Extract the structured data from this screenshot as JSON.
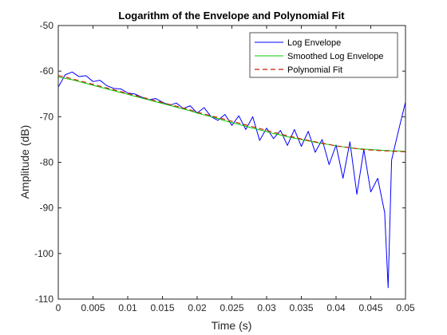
{
  "chart_data": {
    "type": "line",
    "title": "Logarithm of the Envelope and Polynomial Fit",
    "xlabel": "Time (s)",
    "ylabel": "Amplitude (dB)",
    "xlim": [
      0,
      0.05
    ],
    "ylim": [
      -110,
      -50
    ],
    "x_ticks": [
      0,
      0.005,
      0.01,
      0.015,
      0.02,
      0.025,
      0.03,
      0.035,
      0.04,
      0.045,
      0.05
    ],
    "x_tick_labels": [
      "0",
      "0.005",
      "0.01",
      "0.015",
      "0.02",
      "0.025",
      "0.03",
      "0.035",
      "0.04",
      "0.045",
      "0.05"
    ],
    "y_ticks": [
      -110,
      -100,
      -90,
      -80,
      -70,
      -60,
      -50
    ],
    "y_tick_labels": [
      "-110",
      "-100",
      "-90",
      "-80",
      "-70",
      "-60",
      "-50"
    ],
    "grid": false,
    "legend_position": "top-right",
    "x": [
      0,
      0.001,
      0.002,
      0.003,
      0.004,
      0.005,
      0.006,
      0.007,
      0.008,
      0.009,
      0.01,
      0.011,
      0.012,
      0.013,
      0.014,
      0.015,
      0.016,
      0.017,
      0.018,
      0.019,
      0.02,
      0.021,
      0.022,
      0.023,
      0.024,
      0.025,
      0.026,
      0.027,
      0.028,
      0.029,
      0.03,
      0.031,
      0.032,
      0.033,
      0.034,
      0.035,
      0.036,
      0.037,
      0.038,
      0.039,
      0.04,
      0.041,
      0.042,
      0.043,
      0.044,
      0.045,
      0.046,
      0.047,
      0.0475,
      0.048,
      0.049,
      0.05
    ],
    "series": [
      {
        "name": "Log Envelope",
        "color": "#0000ff",
        "dash": "solid",
        "values": [
          -63.5,
          -60.8,
          -60.2,
          -61.2,
          -61.0,
          -62.3,
          -62.0,
          -63.2,
          -63.8,
          -63.9,
          -64.8,
          -65.0,
          -65.7,
          -66.3,
          -66.0,
          -66.8,
          -67.5,
          -67.0,
          -68.2,
          -67.6,
          -69.2,
          -68.0,
          -70.0,
          -70.8,
          -69.5,
          -71.9,
          -69.8,
          -72.8,
          -70.0,
          -75.2,
          -72.5,
          -74.8,
          -73.0,
          -76.3,
          -72.8,
          -76.5,
          -73.2,
          -77.8,
          -75.0,
          -80.5,
          -76.2,
          -83.5,
          -75.5,
          -87.0,
          -77.2,
          -86.5,
          -83.5,
          -91.0,
          -107.5,
          -79.5,
          -73.0,
          -66.8
        ]
      },
      {
        "name": "Smoothed Log Envelope",
        "color": "#00cc00",
        "dash": "solid",
        "values": [
          -61.3,
          -61.6,
          -61.9,
          -62.3,
          -62.7,
          -63.1,
          -63.5,
          -63.9,
          -64.3,
          -64.7,
          -65.1,
          -65.5,
          -65.9,
          -66.3,
          -66.7,
          -67.1,
          -67.5,
          -67.9,
          -68.3,
          -68.7,
          -69.2,
          -69.6,
          -70.0,
          -70.4,
          -70.9,
          -71.3,
          -71.7,
          -72.1,
          -72.5,
          -72.9,
          -73.3,
          -73.7,
          -74.0,
          -74.4,
          -74.7,
          -75.0,
          -75.3,
          -75.6,
          -75.9,
          -76.1,
          -76.4,
          -76.6,
          -76.8,
          -77.0,
          -77.1,
          -77.2,
          -77.3,
          -77.4,
          -77.4,
          -77.5,
          -77.5,
          -77.6
        ]
      },
      {
        "name": "Polynomial Fit",
        "color": "#cc2200",
        "dash": "dashed",
        "values": [
          -61.0,
          -61.3,
          -61.7,
          -62.1,
          -62.5,
          -62.9,
          -63.3,
          -63.7,
          -64.1,
          -64.5,
          -64.9,
          -65.3,
          -65.7,
          -66.1,
          -66.5,
          -66.9,
          -67.3,
          -67.7,
          -68.1,
          -68.5,
          -69.0,
          -69.4,
          -69.8,
          -70.2,
          -70.6,
          -71.0,
          -71.4,
          -71.8,
          -72.2,
          -72.6,
          -73.0,
          -73.4,
          -73.8,
          -74.2,
          -74.5,
          -74.9,
          -75.2,
          -75.5,
          -75.8,
          -76.1,
          -76.4,
          -76.6,
          -76.8,
          -77.0,
          -77.2,
          -77.3,
          -77.4,
          -77.5,
          -77.5,
          -77.6,
          -77.6,
          -77.7
        ]
      }
    ]
  }
}
